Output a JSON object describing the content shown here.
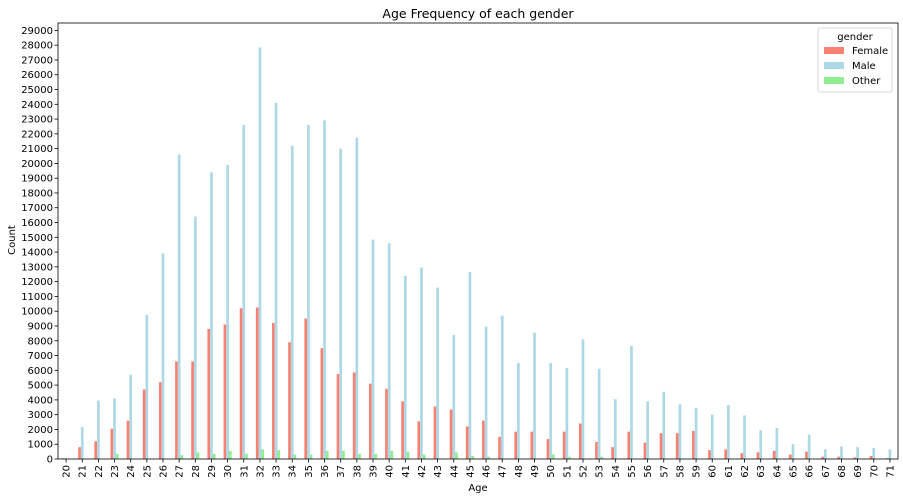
{
  "chart_data": {
    "type": "bar",
    "title": "Age Frequency of each gender",
    "xlabel": "Age",
    "ylabel": "Count",
    "ylim": [
      0,
      29500
    ],
    "y_ticks": [
      0,
      1000,
      2000,
      3000,
      4000,
      5000,
      6000,
      7000,
      8000,
      9000,
      10000,
      11000,
      12000,
      13000,
      14000,
      15000,
      16000,
      17000,
      18000,
      19000,
      20000,
      21000,
      22000,
      23000,
      24000,
      25000,
      26000,
      27000,
      28000,
      29000
    ],
    "grid": false,
    "legend_title": "gender",
    "legend_position": "top-right",
    "categories": [
      "20",
      "21",
      "22",
      "23",
      "24",
      "25",
      "26",
      "27",
      "28",
      "29",
      "30",
      "31",
      "32",
      "33",
      "34",
      "35",
      "36",
      "37",
      "38",
      "39",
      "40",
      "41",
      "42",
      "43",
      "44",
      "45",
      "46",
      "47",
      "48",
      "49",
      "50",
      "51",
      "52",
      "53",
      "54",
      "55",
      "56",
      "57",
      "58",
      "59",
      "60",
      "61",
      "62",
      "63",
      "64",
      "65",
      "66",
      "67",
      "68",
      "69",
      "70",
      "71"
    ],
    "series": [
      {
        "name": "Female",
        "color": "#fa8072",
        "values": [
          50,
          800,
          1200,
          2050,
          2600,
          4700,
          5200,
          6600,
          6600,
          8800,
          9100,
          10200,
          10250,
          9200,
          7900,
          9500,
          7500,
          5750,
          5850,
          5100,
          4750,
          3900,
          2550,
          3550,
          3350,
          2200,
          2600,
          1500,
          1850,
          1850,
          1350,
          1850,
          2400,
          1150,
          800,
          1850,
          1100,
          1750,
          1750,
          1900,
          600,
          650,
          400,
          450,
          550,
          300,
          500,
          150,
          150,
          100,
          200,
          50
        ]
      },
      {
        "name": "Male",
        "color": "#add8e6",
        "values": [
          50,
          2150,
          3950,
          4100,
          5700,
          9750,
          13900,
          20600,
          16400,
          19400,
          19900,
          22600,
          27850,
          24100,
          21200,
          22600,
          22900,
          21000,
          21750,
          14850,
          14600,
          12400,
          12950,
          11600,
          8400,
          12650,
          8950,
          9700,
          6500,
          8550,
          6500,
          6150,
          8100,
          6100,
          4050,
          7650,
          3900,
          4550,
          3700,
          3450,
          3000,
          3650,
          2950,
          1950,
          2100,
          1000,
          1650,
          650,
          850,
          800,
          750,
          650
        ]
      },
      {
        "name": "Other",
        "color": "#90ee90",
        "values": [
          0,
          0,
          0,
          350,
          0,
          0,
          0,
          250,
          450,
          350,
          550,
          350,
          650,
          600,
          300,
          300,
          550,
          550,
          350,
          350,
          550,
          500,
          300,
          0,
          450,
          200,
          150,
          0,
          0,
          0,
          300,
          150,
          0,
          150,
          0,
          0,
          0,
          0,
          0,
          0,
          0,
          0,
          0,
          0,
          0,
          0,
          0,
          0,
          0,
          0,
          0,
          0
        ]
      }
    ]
  }
}
